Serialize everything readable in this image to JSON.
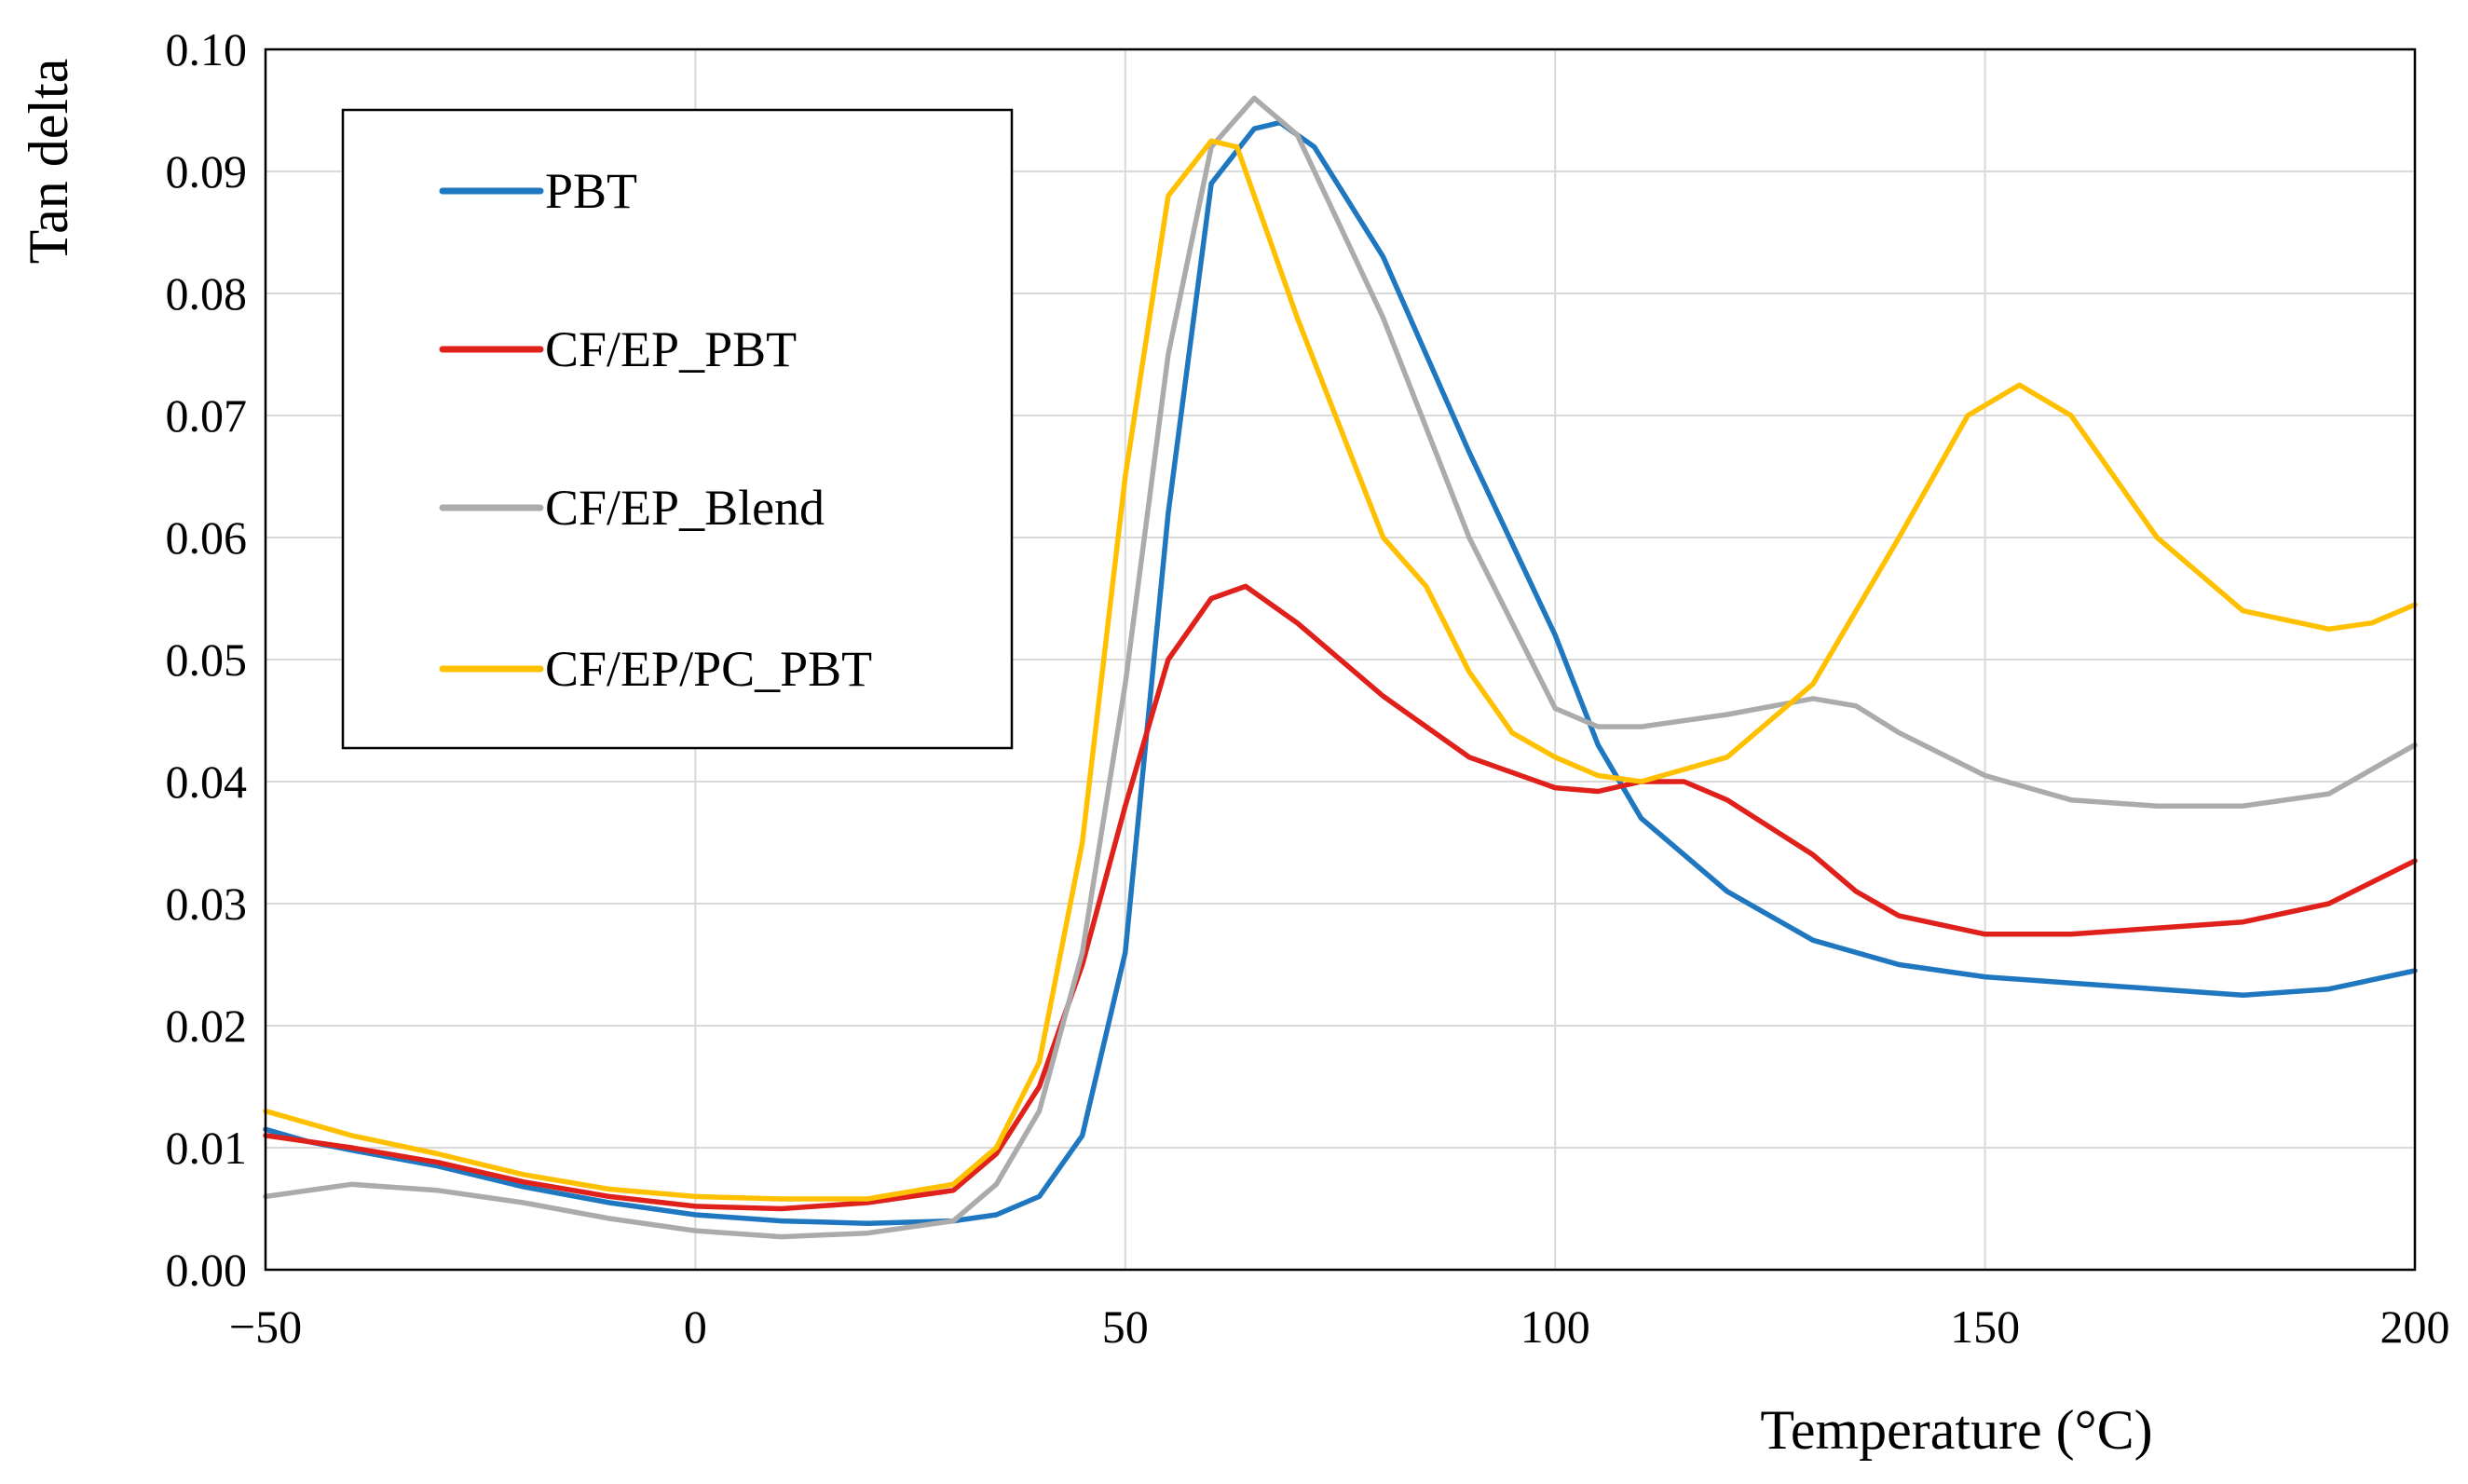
{
  "chart_data": {
    "type": "line",
    "title": "",
    "xlabel": "Temperature (°C)",
    "ylabel": "Tan delta",
    "xlim": [
      -50,
      200
    ],
    "ylim": [
      0,
      0.1
    ],
    "x_ticks": [
      -50,
      0,
      50,
      100,
      150,
      200
    ],
    "x_tick_labels": [
      "−50",
      "0",
      "50",
      "100",
      "150",
      "200"
    ],
    "y_ticks": [
      0,
      0.01,
      0.02,
      0.03,
      0.04,
      0.05,
      0.06,
      0.07,
      0.08,
      0.09,
      0.1
    ],
    "y_tick_labels": [
      "0.00",
      "0.01",
      "0.02",
      "0.03",
      "0.04",
      "0.05",
      "0.06",
      "0.07",
      "0.08",
      "0.09",
      "0.10"
    ],
    "grid": true,
    "legend_position": "top-left",
    "series": [
      {
        "name": "PBT",
        "color": "#1f77c0",
        "points": [
          [
            -50,
            0.0115
          ],
          [
            -45,
            0.0105
          ],
          [
            -40,
            0.0098
          ],
          [
            -30,
            0.0085
          ],
          [
            -20,
            0.0068
          ],
          [
            -10,
            0.0055
          ],
          [
            0,
            0.0045
          ],
          [
            10,
            0.004
          ],
          [
            20,
            0.0038
          ],
          [
            30,
            0.004
          ],
          [
            35,
            0.0045
          ],
          [
            40,
            0.006
          ],
          [
            45,
            0.011
          ],
          [
            50,
            0.026
          ],
          [
            55,
            0.062
          ],
          [
            60,
            0.089
          ],
          [
            65,
            0.0935
          ],
          [
            68,
            0.094
          ],
          [
            72,
            0.092
          ],
          [
            80,
            0.083
          ],
          [
            90,
            0.067
          ],
          [
            100,
            0.052
          ],
          [
            105,
            0.043
          ],
          [
            110,
            0.037
          ],
          [
            120,
            0.031
          ],
          [
            130,
            0.027
          ],
          [
            140,
            0.025
          ],
          [
            150,
            0.024
          ],
          [
            160,
            0.0235
          ],
          [
            170,
            0.023
          ],
          [
            180,
            0.0225
          ],
          [
            190,
            0.023
          ],
          [
            200,
            0.0245
          ]
        ]
      },
      {
        "name": "CF/EP_PBT",
        "color": "#e0201b",
        "points": [
          [
            -50,
            0.011
          ],
          [
            -40,
            0.01
          ],
          [
            -30,
            0.0088
          ],
          [
            -20,
            0.0072
          ],
          [
            -10,
            0.006
          ],
          [
            0,
            0.0052
          ],
          [
            10,
            0.005
          ],
          [
            20,
            0.0055
          ],
          [
            30,
            0.0065
          ],
          [
            35,
            0.0095
          ],
          [
            40,
            0.015
          ],
          [
            45,
            0.025
          ],
          [
            50,
            0.038
          ],
          [
            55,
            0.05
          ],
          [
            60,
            0.055
          ],
          [
            64,
            0.056
          ],
          [
            70,
            0.053
          ],
          [
            80,
            0.047
          ],
          [
            90,
            0.042
          ],
          [
            100,
            0.0395
          ],
          [
            105,
            0.0392
          ],
          [
            110,
            0.04
          ],
          [
            115,
            0.04
          ],
          [
            120,
            0.0385
          ],
          [
            130,
            0.034
          ],
          [
            135,
            0.031
          ],
          [
            140,
            0.029
          ],
          [
            150,
            0.0275
          ],
          [
            160,
            0.0275
          ],
          [
            170,
            0.028
          ],
          [
            180,
            0.0285
          ],
          [
            190,
            0.03
          ],
          [
            200,
            0.0335
          ]
        ]
      },
      {
        "name": "CF/EP_Blend",
        "color": "#ababab",
        "points": [
          [
            -50,
            0.006
          ],
          [
            -40,
            0.007
          ],
          [
            -30,
            0.0065
          ],
          [
            -20,
            0.0055
          ],
          [
            -10,
            0.0042
          ],
          [
            0,
            0.0032
          ],
          [
            10,
            0.0027
          ],
          [
            20,
            0.003
          ],
          [
            30,
            0.004
          ],
          [
            35,
            0.007
          ],
          [
            40,
            0.013
          ],
          [
            45,
            0.026
          ],
          [
            50,
            0.048
          ],
          [
            55,
            0.075
          ],
          [
            60,
            0.092
          ],
          [
            65,
            0.096
          ],
          [
            70,
            0.093
          ],
          [
            80,
            0.078
          ],
          [
            90,
            0.06
          ],
          [
            100,
            0.046
          ],
          [
            105,
            0.0445
          ],
          [
            110,
            0.0445
          ],
          [
            120,
            0.0455
          ],
          [
            130,
            0.0468
          ],
          [
            135,
            0.0462
          ],
          [
            140,
            0.044
          ],
          [
            150,
            0.0405
          ],
          [
            160,
            0.0385
          ],
          [
            170,
            0.038
          ],
          [
            180,
            0.038
          ],
          [
            190,
            0.039
          ],
          [
            200,
            0.043
          ]
        ]
      },
      {
        "name": "CF/EP/PC_PBT",
        "color": "#ffc000",
        "points": [
          [
            -50,
            0.013
          ],
          [
            -40,
            0.011
          ],
          [
            -30,
            0.0095
          ],
          [
            -20,
            0.0078
          ],
          [
            -10,
            0.0066
          ],
          [
            0,
            0.006
          ],
          [
            10,
            0.0058
          ],
          [
            20,
            0.0058
          ],
          [
            30,
            0.007
          ],
          [
            35,
            0.01
          ],
          [
            40,
            0.017
          ],
          [
            45,
            0.035
          ],
          [
            50,
            0.065
          ],
          [
            55,
            0.088
          ],
          [
            60,
            0.0925
          ],
          [
            63,
            0.092
          ],
          [
            70,
            0.078
          ],
          [
            80,
            0.06
          ],
          [
            85,
            0.056
          ],
          [
            90,
            0.049
          ],
          [
            95,
            0.044
          ],
          [
            100,
            0.042
          ],
          [
            105,
            0.0405
          ],
          [
            110,
            0.04
          ],
          [
            120,
            0.042
          ],
          [
            130,
            0.048
          ],
          [
            140,
            0.06
          ],
          [
            148,
            0.07
          ],
          [
            154,
            0.0725
          ],
          [
            160,
            0.07
          ],
          [
            170,
            0.06
          ],
          [
            180,
            0.054
          ],
          [
            190,
            0.0525
          ],
          [
            195,
            0.053
          ],
          [
            200,
            0.0545
          ]
        ]
      }
    ]
  }
}
